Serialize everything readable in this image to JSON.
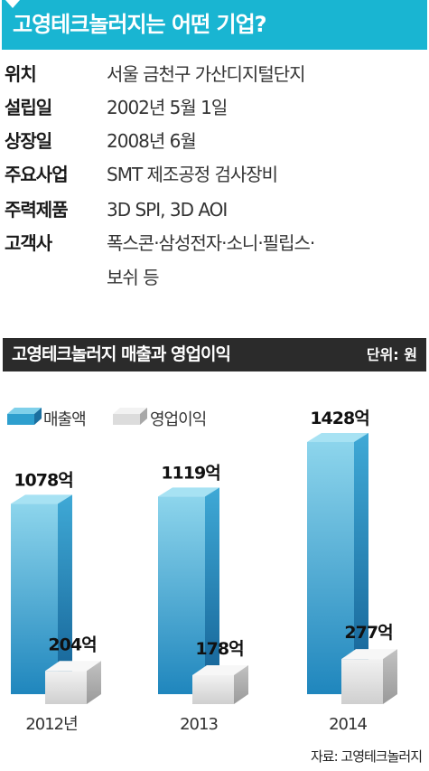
{
  "header": {
    "title": "고영테크놀러지는 어떤 기업?"
  },
  "info": [
    {
      "label": "위치",
      "value": "서울 금천구 가산디지털단지"
    },
    {
      "label": "설립일",
      "value": "2002년 5월 1일"
    },
    {
      "label": "상장일",
      "value": "2008년 6월"
    },
    {
      "label": "주요사업",
      "value": "SMT 제조공정 검사장비"
    },
    {
      "label": "주력제품",
      "value": "3D SPI, 3D AOI"
    },
    {
      "label": "고객사",
      "value": "폭스콘·삼성전자·소니·필립스·",
      "value2": "보쉬 등"
    }
  ],
  "chart_header": {
    "title": "고영테크놀러지 매출과 영업이익",
    "unit": "단위: 원"
  },
  "source": "자료: 고영테크놀러지",
  "colors": {
    "accent": "#19b5d2",
    "revenue": "#2e9fce",
    "profit": "#d8d8d8",
    "header_bg": "#2b2b2b"
  },
  "chart_data": {
    "type": "bar",
    "title": "고영테크놀러지 매출과 영업이익",
    "unit": "단위: 원",
    "categories": [
      "2012년",
      "2013",
      "2014"
    ],
    "series": [
      {
        "name": "매출액",
        "values": [
          1078,
          1119,
          1428
        ],
        "labels": [
          "1078억",
          "1119억",
          "1428억"
        ]
      },
      {
        "name": "영업이익",
        "values": [
          204,
          178,
          277
        ],
        "labels": [
          "204억",
          "178억",
          "277억"
        ]
      }
    ],
    "legend": "top-left"
  }
}
